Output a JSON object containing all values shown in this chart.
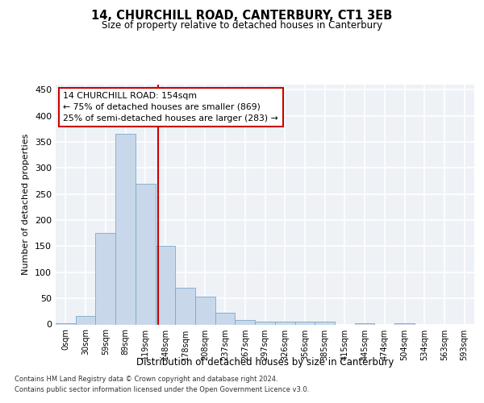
{
  "title": "14, CHURCHILL ROAD, CANTERBURY, CT1 3EB",
  "subtitle": "Size of property relative to detached houses in Canterbury",
  "xlabel": "Distribution of detached houses by size in Canterbury",
  "ylabel": "Number of detached properties",
  "bar_color": "#c8d8ea",
  "bar_edge_color": "#7aaac8",
  "bin_labels": [
    "0sqm",
    "30sqm",
    "59sqm",
    "89sqm",
    "119sqm",
    "148sqm",
    "178sqm",
    "208sqm",
    "237sqm",
    "267sqm",
    "297sqm",
    "326sqm",
    "356sqm",
    "385sqm",
    "415sqm",
    "445sqm",
    "474sqm",
    "504sqm",
    "534sqm",
    "563sqm",
    "593sqm"
  ],
  "bar_heights": [
    2,
    16,
    175,
    365,
    270,
    150,
    70,
    53,
    22,
    8,
    5,
    5,
    5,
    6,
    0,
    2,
    0,
    2,
    0,
    0,
    0
  ],
  "vline_x": 4.62,
  "vline_color": "#cc0000",
  "annotation_text": "14 CHURCHILL ROAD: 154sqm\n← 75% of detached houses are smaller (869)\n25% of semi-detached houses are larger (283) →",
  "annotation_box_color": "#ffffff",
  "annotation_box_edge_color": "#cc0000",
  "ylim": [
    0,
    460
  ],
  "yticks": [
    0,
    50,
    100,
    150,
    200,
    250,
    300,
    350,
    400,
    450
  ],
  "footer_line1": "Contains HM Land Registry data © Crown copyright and database right 2024.",
  "footer_line2": "Contains public sector information licensed under the Open Government Licence v3.0.",
  "background_color": "#eef2f7",
  "grid_color": "#ffffff",
  "fig_bg_color": "#ffffff"
}
